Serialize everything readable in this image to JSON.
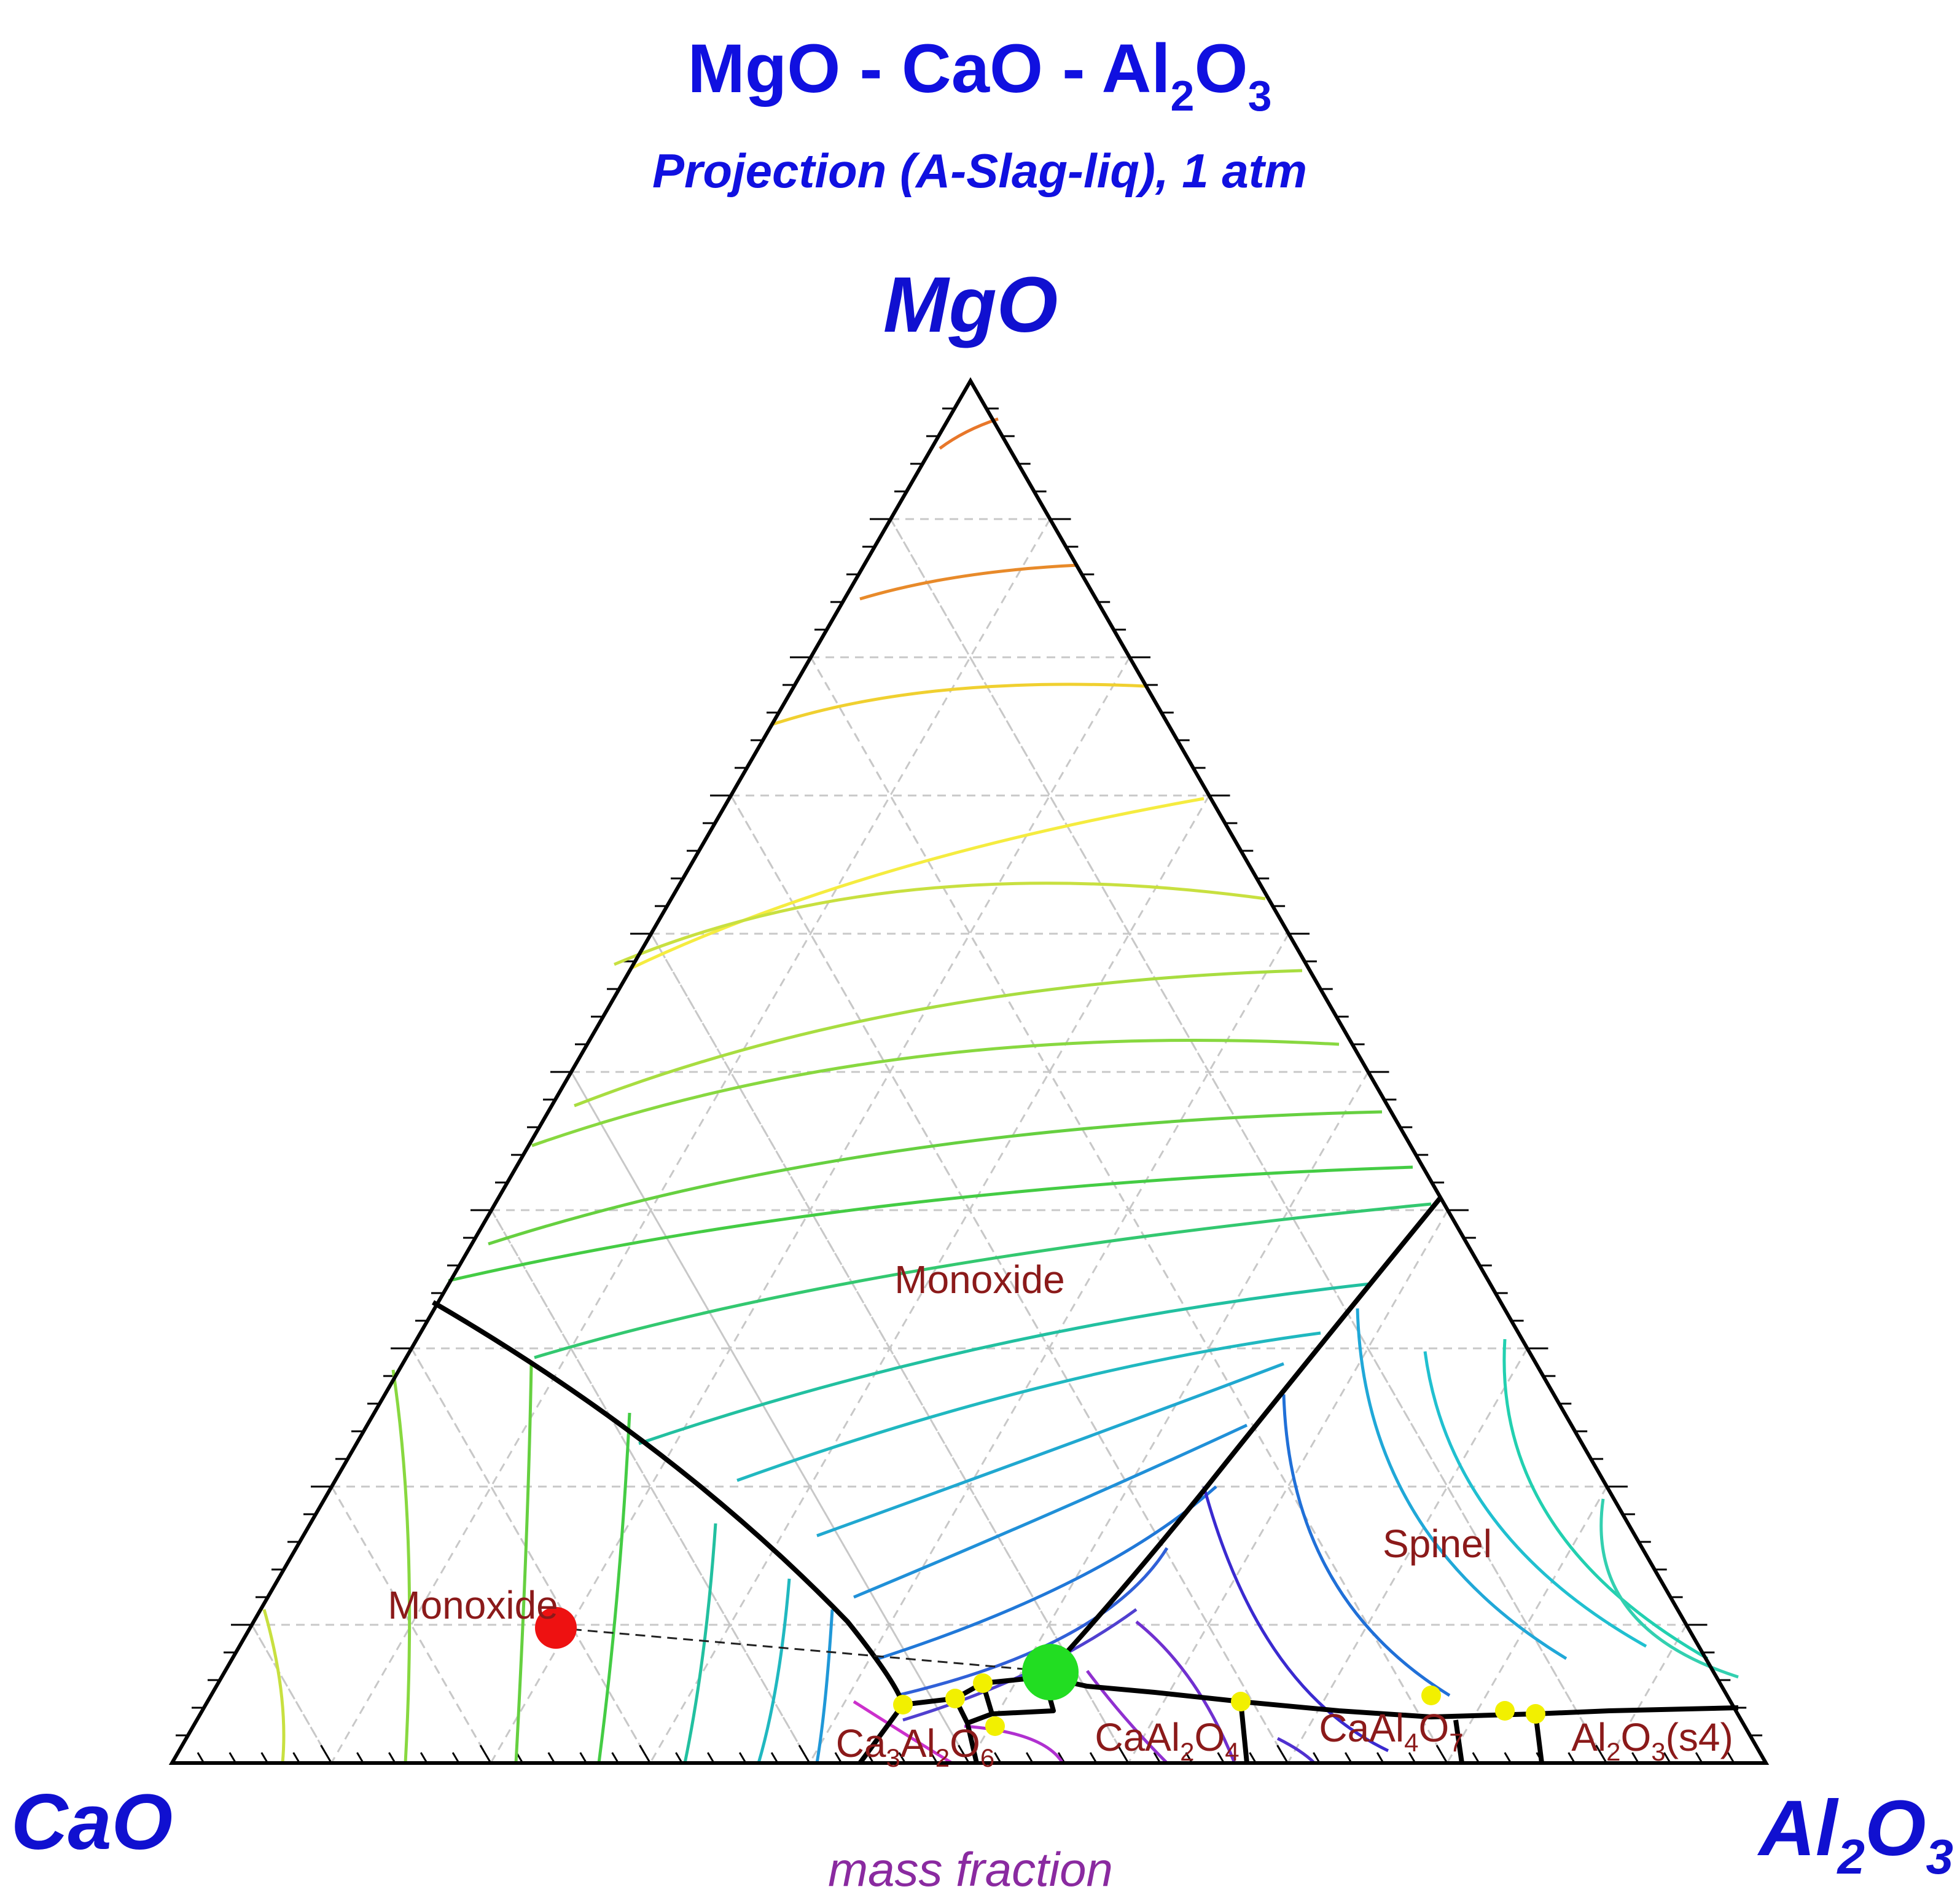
{
  "title": {
    "main": "MgO - CaO - Al",
    "sub1": "2",
    "mid": "O",
    "sub2": "3",
    "color": "#1010e0"
  },
  "subtitle": {
    "text": "Projection (A-Slag-liq), 1 atm",
    "color": "#1010e0"
  },
  "corners": {
    "top": "MgO",
    "left": "CaO",
    "right": {
      "base": "Al",
      "sub1": "2",
      "mid": "O",
      "sub2": "3"
    },
    "color": "#1010d0"
  },
  "axis_note": {
    "text": "mass fraction",
    "color": "#8a2aa0"
  },
  "phase_labels": [
    {
      "id": "monoxide-upper",
      "parts": [
        {
          "t": "Monoxide"
        }
      ]
    },
    {
      "id": "monoxide-lower",
      "parts": [
        {
          "t": "Monoxide"
        }
      ]
    },
    {
      "id": "spinel",
      "parts": [
        {
          "t": "Spinel"
        }
      ]
    },
    {
      "id": "c3a",
      "parts": [
        {
          "t": "Ca"
        },
        {
          "t": "3",
          "sub": true
        },
        {
          "t": "Al"
        },
        {
          "t": "2",
          "sub": true
        },
        {
          "t": "O"
        },
        {
          "t": "6",
          "sub": true
        }
      ]
    },
    {
      "id": "ca",
      "parts": [
        {
          "t": "CaAl"
        },
        {
          "t": "2",
          "sub": true
        },
        {
          "t": "O"
        },
        {
          "t": "4",
          "sub": true
        }
      ]
    },
    {
      "id": "ca2",
      "parts": [
        {
          "t": "CaAl"
        },
        {
          "t": "4",
          "sub": true
        },
        {
          "t": "O"
        },
        {
          "t": "7",
          "sub": true
        }
      ]
    },
    {
      "id": "alumina",
      "parts": [
        {
          "t": "Al"
        },
        {
          "t": "2",
          "sub": true
        },
        {
          "t": "O"
        },
        {
          "t": "3",
          "sub": true
        },
        {
          "t": "(s4)"
        }
      ]
    }
  ],
  "label_color": "#8b1a1a",
  "colors": {
    "boundary": "#000000",
    "grid": "#c8c8c8",
    "red_point": "#ee1111",
    "green_point": "#22dd22",
    "yellow_point": "#f2f000"
  }
}
